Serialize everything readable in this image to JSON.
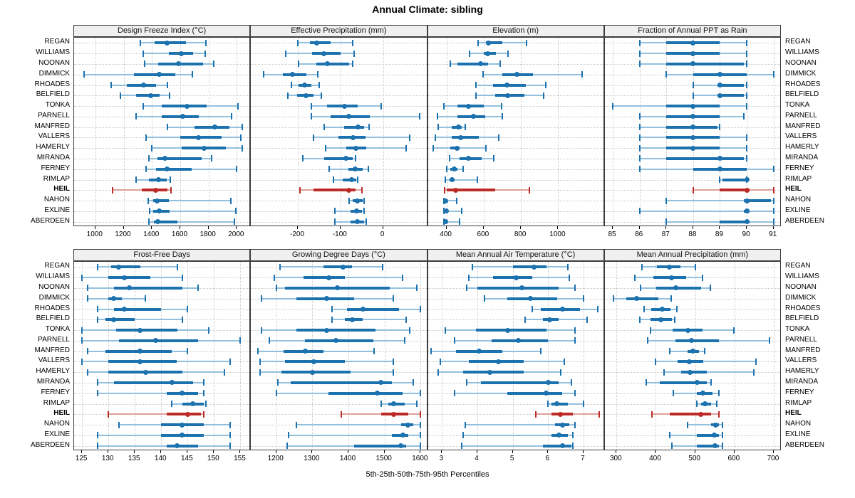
{
  "title": "Annual Climate: sibling",
  "caption": "5th-25th-50th-75th-95th Percentiles",
  "colors": {
    "blue_main": "#1c72ae",
    "blue_light": "#93c0dd",
    "red_main": "#bd2b27",
    "red_light": "#dfa09b",
    "strip_bg": "#f0f0f0",
    "grid_line": "#c9c9c9",
    "panel_border": "#3c3c3c"
  },
  "chart_data": {
    "type": "scatter",
    "mark": "horizontal 5th-25th-50th-75th-95th percentile intervals (dot = median)",
    "legend_position": "none",
    "grid": true,
    "highlight_station": "HEIL",
    "stations": [
      "REGAN",
      "WILLIAMS",
      "NOONAN",
      "DIMMICK",
      "RHOADES",
      "BELFIELD",
      "TONKA",
      "PARNELL",
      "MANFRED",
      "VALLERS",
      "HAMERLY",
      "MIRANDA",
      "FERNEY",
      "RIMLAP",
      "HEIL",
      "NAHON",
      "EXLINE",
      "ABERDEEN"
    ],
    "panels": [
      {
        "title": "Design Freeze Index (°C)",
        "grid_row": 0,
        "grid_col": 0,
        "xlim": [
          850,
          2100
        ],
        "ticks": [
          1000,
          1200,
          1400,
          1600,
          1800,
          2000
        ],
        "percentiles": [
          [
            1320,
            1420,
            1505,
            1640,
            1780
          ],
          [
            1340,
            1520,
            1610,
            1690,
            1775
          ],
          [
            1350,
            1445,
            1590,
            1760,
            1835
          ],
          [
            920,
            1275,
            1450,
            1565,
            1685
          ],
          [
            1110,
            1225,
            1340,
            1430,
            1510
          ],
          [
            1175,
            1290,
            1390,
            1455,
            1525
          ],
          [
            1340,
            1470,
            1650,
            1785,
            2010
          ],
          [
            1290,
            1470,
            1620,
            1730,
            1965
          ],
          [
            1510,
            1700,
            1845,
            1950,
            2040
          ],
          [
            1360,
            1600,
            1730,
            1890,
            2030
          ],
          [
            1400,
            1610,
            1770,
            1925,
            2040
          ],
          [
            1380,
            1440,
            1490,
            1750,
            1820
          ],
          [
            1360,
            1430,
            1505,
            1680,
            2000
          ],
          [
            1290,
            1380,
            1445,
            1505,
            1530
          ],
          [
            1120,
            1330,
            1425,
            1510,
            1535
          ],
          [
            1376,
            1407,
            1439,
            1520,
            1960
          ],
          [
            1386,
            1407,
            1451,
            1527,
            1995
          ],
          [
            1381,
            1412,
            1444,
            1580,
            1985
          ]
        ]
      },
      {
        "title": "Effective Precipitation (mm)",
        "grid_row": 0,
        "grid_col": 1,
        "xlim": [
          -310,
          105
        ],
        "ticks": [
          -200,
          -100,
          0
        ],
        "percentiles": [
          [
            -200,
            -172,
            -155,
            -124,
            -71
          ],
          [
            -228,
            -167,
            -139,
            -99,
            -68
          ],
          [
            -199,
            -157,
            -130,
            -80,
            -72
          ],
          [
            -281,
            -236,
            -213,
            -180,
            -154
          ],
          [
            -215,
            -198,
            -185,
            -169,
            -150
          ],
          [
            -223,
            -201,
            -181,
            -164,
            -145
          ],
          [
            -168,
            -131,
            -91,
            -60,
            -5
          ],
          [
            -168,
            -124,
            -81,
            -31,
            85
          ],
          [
            -139,
            -92,
            -59,
            -45,
            -33
          ],
          [
            -164,
            -104,
            -71,
            -41,
            62
          ],
          [
            -135,
            -87,
            -64,
            -40,
            54
          ],
          [
            -189,
            -138,
            -88,
            -72,
            -65
          ],
          [
            -126,
            -82,
            -66,
            -48,
            -34
          ],
          [
            -117,
            -95,
            -74,
            -63,
            -60
          ],
          [
            -195,
            -164,
            -81,
            -64,
            -50
          ],
          [
            -79,
            -72,
            -61,
            -48,
            -44
          ],
          [
            -113,
            -77,
            -62,
            -49,
            -44
          ],
          [
            -113,
            -77,
            -61,
            -45,
            -40
          ]
        ]
      },
      {
        "title": "Elevation (m)",
        "grid_row": 0,
        "grid_col": 2,
        "xlim": [
          300,
          1250
        ],
        "ticks": [
          400,
          600,
          800,
          1000
        ],
        "percentiles": [
          [
            570,
            610,
            625,
            700,
            830
          ],
          [
            525,
            600,
            620,
            665,
            730
          ],
          [
            420,
            460,
            585,
            625,
            690
          ],
          [
            595,
            700,
            780,
            865,
            1130
          ],
          [
            560,
            650,
            725,
            825,
            935
          ],
          [
            560,
            660,
            730,
            820,
            920
          ],
          [
            385,
            460,
            520,
            600,
            695
          ],
          [
            350,
            460,
            545,
            610,
            700
          ],
          [
            355,
            430,
            465,
            480,
            500
          ],
          [
            340,
            430,
            475,
            575,
            680
          ],
          [
            330,
            420,
            455,
            470,
            610
          ],
          [
            415,
            470,
            520,
            590,
            655
          ],
          [
            400,
            420,
            440,
            460,
            490
          ],
          [
            395,
            415,
            430,
            445,
            565
          ],
          [
            390,
            400,
            450,
            660,
            845
          ],
          [
            385,
            390,
            395,
            400,
            455
          ],
          [
            388,
            393,
            398,
            405,
            480
          ],
          [
            385,
            390,
            395,
            400,
            470
          ]
        ]
      },
      {
        "title": "Fraction of Annual PPT as Rain",
        "grid_row": 0,
        "grid_col": 3,
        "xlim": [
          84.7,
          91.3
        ],
        "ticks": [
          85,
          86,
          87,
          88,
          89,
          90,
          91
        ],
        "percentiles": [
          [
            86,
            87,
            88,
            89,
            90
          ],
          [
            86,
            87,
            88,
            89,
            90
          ],
          [
            86,
            87,
            88,
            89.9,
            90
          ],
          [
            87,
            88,
            89,
            90,
            91
          ],
          [
            88,
            88.9,
            89,
            89.9,
            90
          ],
          [
            88,
            88.9,
            89,
            89.9,
            90
          ],
          [
            85,
            87,
            88,
            89,
            90
          ],
          [
            86,
            87,
            88,
            89,
            89.9
          ],
          [
            86,
            87,
            88,
            88.9,
            89
          ],
          [
            86,
            87,
            88,
            89,
            90
          ],
          [
            86,
            87,
            88,
            89,
            90
          ],
          [
            86,
            87,
            89,
            89.9,
            90
          ],
          [
            86,
            88,
            89,
            90,
            91
          ],
          [
            89,
            89.1,
            90,
            90,
            90
          ],
          [
            88,
            89,
            90,
            90.1,
            91
          ],
          [
            87,
            89.9,
            90,
            90.9,
            91
          ],
          [
            86,
            89.9,
            90,
            90.1,
            91
          ],
          [
            87,
            89,
            90,
            90.1,
            91
          ]
        ]
      },
      {
        "title": "Frost-Free Days",
        "grid_row": 1,
        "grid_col": 0,
        "xlim": [
          123.5,
          157
        ],
        "ticks": [
          125,
          130,
          135,
          140,
          145,
          150,
          155
        ],
        "percentiles": [
          [
            128,
            130.5,
            132,
            136,
            143
          ],
          [
            125,
            130,
            133,
            138,
            144
          ],
          [
            126,
            131,
            134,
            144,
            147
          ],
          [
            126,
            130,
            131,
            132.5,
            137
          ],
          [
            128,
            131,
            133,
            140,
            145
          ],
          [
            128,
            129.5,
            131,
            135,
            144
          ],
          [
            125,
            131.5,
            136,
            143,
            149
          ],
          [
            125,
            132,
            139,
            147,
            155
          ],
          [
            126,
            129.5,
            136,
            142,
            145
          ],
          [
            125,
            130,
            136,
            143,
            153
          ],
          [
            126,
            130,
            137,
            144,
            152
          ],
          [
            128,
            131,
            142,
            146,
            148
          ],
          [
            128,
            141,
            144,
            147,
            148
          ],
          [
            142,
            144,
            146,
            148,
            148.5
          ],
          [
            130,
            141,
            145,
            147.5,
            148
          ],
          [
            132,
            140,
            144,
            148,
            153
          ],
          [
            128,
            140,
            144,
            148,
            153
          ],
          [
            128,
            141,
            143,
            147,
            153
          ]
        ]
      },
      {
        "title": "Growing Degree Days (°C)",
        "grid_row": 1,
        "grid_col": 1,
        "xlim": [
          1130,
          1620
        ],
        "ticks": [
          1200,
          1300,
          1400,
          1500,
          1600
        ],
        "percentiles": [
          [
            1210,
            1330,
            1385,
            1410,
            1495
          ],
          [
            1195,
            1275,
            1345,
            1390,
            1550
          ],
          [
            1200,
            1225,
            1370,
            1515,
            1590
          ],
          [
            1160,
            1255,
            1340,
            1415,
            1525
          ],
          [
            1355,
            1395,
            1440,
            1540,
            1600
          ],
          [
            1355,
            1390,
            1410,
            1440,
            1560
          ],
          [
            1160,
            1255,
            1340,
            1475,
            1570
          ],
          [
            1180,
            1280,
            1365,
            1470,
            1555
          ],
          [
            1150,
            1220,
            1280,
            1330,
            1470
          ],
          [
            1155,
            1225,
            1305,
            1390,
            1525
          ],
          [
            1155,
            1215,
            1300,
            1405,
            1525
          ],
          [
            1205,
            1240,
            1490,
            1520,
            1580
          ],
          [
            1200,
            1345,
            1480,
            1550,
            1600
          ],
          [
            1490,
            1510,
            1525,
            1555,
            1590
          ],
          [
            1380,
            1490,
            1525,
            1565,
            1600
          ],
          [
            1255,
            1545,
            1565,
            1580,
            1600
          ],
          [
            1235,
            1520,
            1550,
            1565,
            1600
          ],
          [
            1230,
            1415,
            1545,
            1560,
            1600
          ]
        ]
      },
      {
        "title": "Mean Annual Air Temperature (°C)",
        "grid_row": 1,
        "grid_col": 2,
        "xlim": [
          2.6,
          7.6
        ],
        "ticks": [
          3,
          4,
          5,
          6,
          7
        ],
        "percentiles": [
          [
            3.85,
            5.0,
            5.6,
            5.95,
            6.55
          ],
          [
            3.75,
            4.45,
            5.1,
            5.55,
            6.6
          ],
          [
            3.7,
            4.0,
            5.25,
            6.3,
            6.75
          ],
          [
            4.2,
            4.85,
            5.5,
            6.25,
            7.0
          ],
          [
            5.55,
            5.8,
            6.4,
            6.9,
            7.4
          ],
          [
            5.35,
            5.85,
            6.05,
            6.3,
            7.1
          ],
          [
            3.1,
            3.95,
            4.85,
            5.95,
            6.75
          ],
          [
            3.35,
            4.4,
            5.15,
            6.0,
            6.75
          ],
          [
            2.7,
            3.4,
            4.05,
            4.7,
            5.8
          ],
          [
            2.95,
            3.75,
            4.6,
            5.3,
            6.45
          ],
          [
            2.9,
            3.6,
            4.35,
            5.3,
            6.35
          ],
          [
            3.7,
            4.1,
            6.0,
            6.3,
            6.65
          ],
          [
            3.35,
            4.85,
            5.95,
            6.4,
            6.75
          ],
          [
            6.0,
            6.1,
            6.25,
            6.55,
            7.0
          ],
          [
            5.65,
            6.1,
            6.35,
            6.7,
            7.45
          ],
          [
            3.65,
            6.2,
            6.4,
            6.6,
            6.75
          ],
          [
            3.6,
            6.1,
            6.3,
            6.55,
            6.7
          ],
          [
            3.55,
            5.85,
            6.4,
            6.65,
            6.7
          ]
        ]
      },
      {
        "title": "Mean Annual Precipitation (mm)",
        "grid_row": 1,
        "grid_col": 3,
        "xlim": [
          270,
          720
        ],
        "ticks": [
          300,
          400,
          500,
          600,
          700
        ],
        "percentiles": [
          [
            365,
            403,
            434,
            463,
            500
          ],
          [
            346,
            393,
            440,
            478,
            519
          ],
          [
            361,
            401,
            451,
            516,
            539
          ],
          [
            292,
            325,
            352,
            407,
            439
          ],
          [
            370,
            389,
            416,
            437,
            454
          ],
          [
            359,
            387,
            413,
            440,
            448
          ],
          [
            387,
            442,
            481,
            519,
            599
          ],
          [
            380,
            450,
            490,
            560,
            690
          ],
          [
            435,
            480,
            495,
            510,
            525
          ],
          [
            400,
            455,
            485,
            520,
            655
          ],
          [
            420,
            465,
            487,
            530,
            650
          ],
          [
            375,
            410,
            505,
            530,
            540
          ],
          [
            445,
            505,
            520,
            545,
            560
          ],
          [
            505,
            515,
            525,
            540,
            555
          ],
          [
            390,
            435,
            515,
            540,
            560
          ],
          [
            480,
            540,
            552,
            560,
            570
          ],
          [
            435,
            505,
            548,
            560,
            570
          ],
          [
            440,
            505,
            550,
            560,
            570
          ]
        ]
      }
    ]
  }
}
